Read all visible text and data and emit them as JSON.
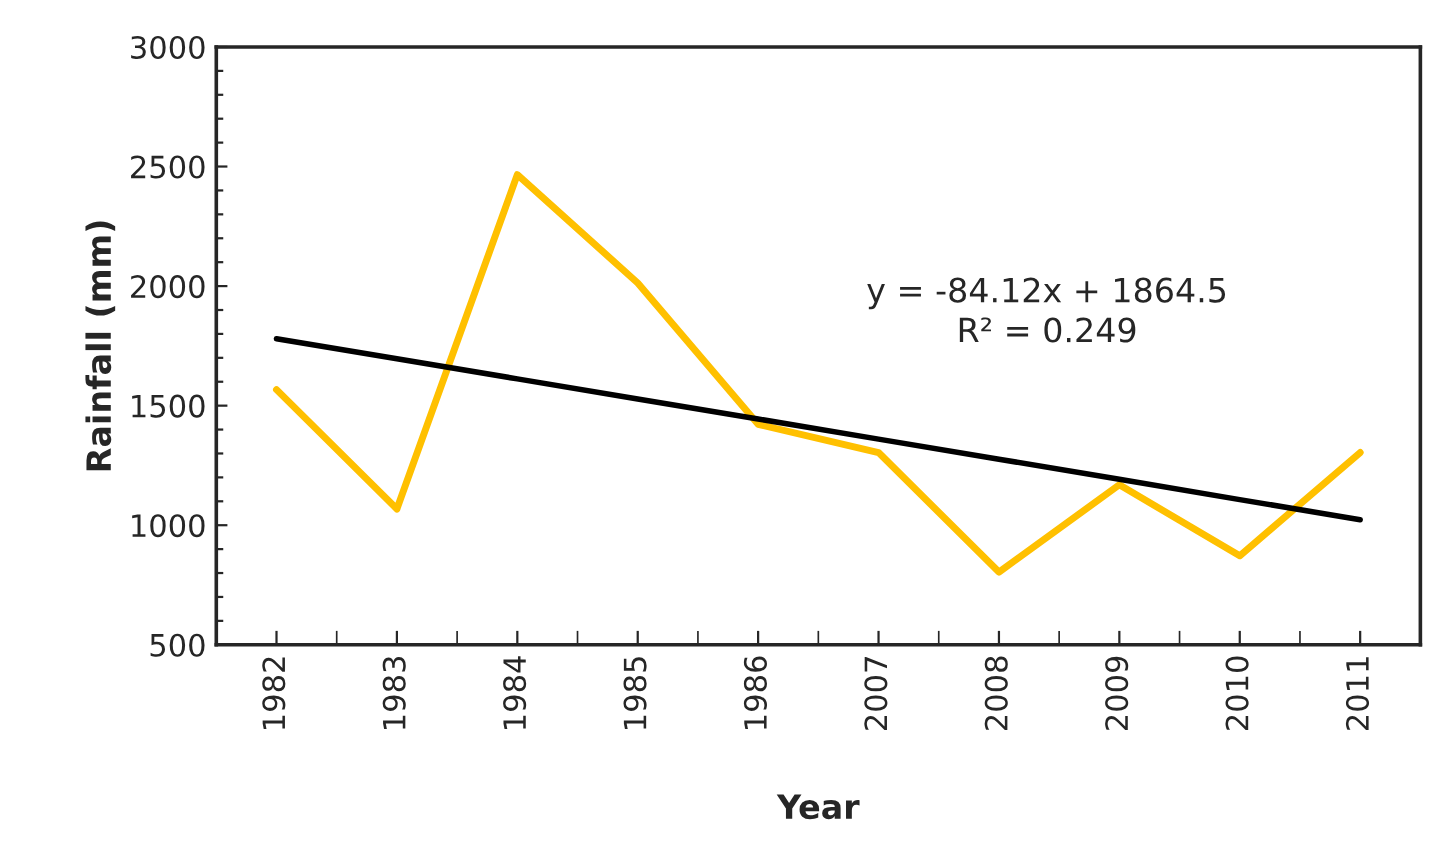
{
  "chart_data": {
    "type": "line",
    "xlabel": "Year",
    "ylabel": "Rainfall (mm)",
    "categories": [
      "1982",
      "1983",
      "1984",
      "1985",
      "1986",
      "2007",
      "2008",
      "2009",
      "2010",
      "2011"
    ],
    "series": [
      {
        "color": "#ffc000",
        "values": [
          1567,
          1068,
          2466,
          2013,
          1422,
          1304,
          804,
          1169,
          872,
          1304
        ]
      },
      {
        "color": "#000000",
        "values": [
          1780,
          1696,
          1612,
          1528,
          1444,
          1360,
          1276,
          1192,
          1107,
          1023
        ]
      }
    ],
    "ylim": [
      500,
      3000
    ],
    "yticks": [
      500,
      {
        "value": 600,
        "label": null
      },
      {
        "value": 700,
        "label": null
      },
      {
        "value": 800,
        "label": null
      },
      {
        "value": 900,
        "label": null
      },
      1000,
      {
        "value": 1100,
        "label": null
      },
      {
        "value": 1200,
        "label": null
      },
      {
        "value": 1300,
        "label": null
      },
      {
        "value": 1400,
        "label": null
      },
      1500,
      {
        "value": 1600,
        "label": null
      },
      {
        "value": 1700,
        "label": null
      },
      {
        "value": 1800,
        "label": null
      },
      {
        "value": 1900,
        "label": null
      },
      2000,
      {
        "value": 2100,
        "label": null
      },
      {
        "value": 2200,
        "label": null
      },
      {
        "value": 2300,
        "label": null
      },
      {
        "value": 2400,
        "label": null
      },
      2500,
      {
        "value": 2600,
        "label": null
      },
      {
        "value": 2700,
        "label": null
      },
      {
        "value": 2800,
        "label": null
      },
      {
        "value": 2900,
        "label": null
      },
      3000
    ],
    "annotations": [
      "y = -84.12x + 1864.5\nR² = 0.249"
    ],
    "grid": false,
    "legend": false,
    "marker": "none",
    "line_style": "solid"
  }
}
